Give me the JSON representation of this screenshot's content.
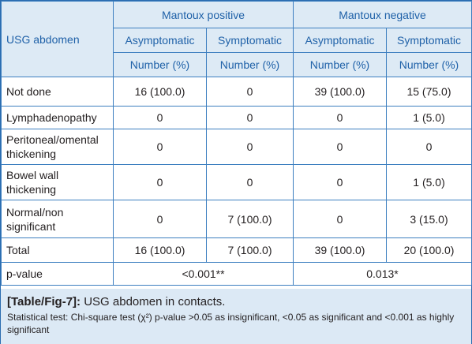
{
  "table": {
    "row_header_label": "USG abdomen",
    "groups": [
      "Mantoux positive",
      "Mantoux negative"
    ],
    "subgroups": [
      "Asymptomatic",
      "Symptomatic",
      "Asymptomatic",
      "Symptomatic"
    ],
    "units": [
      "Number (%)",
      "Number (%)",
      "Number (%)",
      "Number (%)"
    ],
    "rows": [
      {
        "label": "Not done",
        "values": [
          "16 (100.0)",
          "0",
          "39 (100.0)",
          "15 (75.0)"
        ]
      },
      {
        "label": "Lymphadenopathy",
        "values": [
          "0",
          "0",
          "0",
          "1 (5.0)"
        ]
      },
      {
        "label_lines": [
          "Peritoneal/omental",
          "thickening"
        ],
        "values": [
          "0",
          "0",
          "0",
          "0"
        ]
      },
      {
        "label_lines": [
          "Bowel wall",
          "thickening"
        ],
        "values": [
          "0",
          "0",
          "0",
          "1 (5.0)"
        ]
      },
      {
        "label_lines": [
          "Normal/non",
          "significant"
        ],
        "values": [
          "0",
          "7 (100.0)",
          "0",
          "3 (15.0)"
        ]
      },
      {
        "label": "Total",
        "values": [
          "16 (100.0)",
          "7 (100.0)",
          "39 (100.0)",
          "20 (100.0)"
        ]
      }
    ],
    "pvalue_row": {
      "label": "p-value",
      "values": [
        "<0.001**",
        "0.013*"
      ]
    }
  },
  "caption": {
    "tag": "[Table/Fig-7]:",
    "title": " USG abdomen in contacts.",
    "note": "Statistical test: Chi-square test (χ²) p-value >0.05 as insignificant, <0.05 as significant and <0.001 as highly significant"
  },
  "colors": {
    "accent": "#1f61a8",
    "border": "#3d7fc0",
    "header_bg": "#ddeaf5",
    "caption_bg": "#dce9f5"
  }
}
